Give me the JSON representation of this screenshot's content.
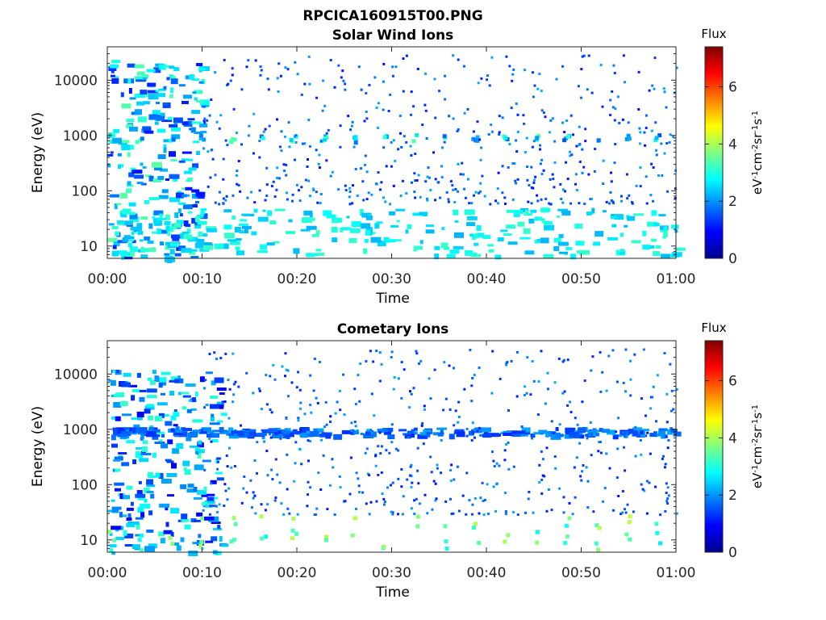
{
  "figure_title": "RPCICA160915T00.PNG",
  "chart_data": [
    {
      "type": "heatmap",
      "title": "Solar Wind Ions",
      "xlabel": "Time",
      "ylabel": "Energy (eV)",
      "x_ticks": [
        "00:00",
        "00:10",
        "00:20",
        "00:30",
        "00:40",
        "00:50",
        "01:00"
      ],
      "xlim": [
        "00:00",
        "01:00"
      ],
      "y_scale": "log",
      "y_ticks": [
        "10",
        "100",
        "1000",
        "10000"
      ],
      "ylim": [
        6,
        40000
      ],
      "colorbar": {
        "title": "Flux",
        "label": "eV-1cm-2sr-1s-1",
        "range": [
          0,
          7.4
        ],
        "ticks": [
          "0",
          "2",
          "4",
          "6"
        ],
        "colormap": "jet"
      },
      "features": [
        {
          "time": "00:00-00:10",
          "energy": [
            6,
            25000
          ],
          "flux": [
            1,
            3.5
          ]
        },
        {
          "time": "00:00-01:00",
          "energy": [
            800,
            1100
          ],
          "flux": [
            1.5,
            3.5
          ],
          "note": "periodic bursts every ~3 min"
        },
        {
          "time": "00:00-01:00",
          "energy": [
            7,
            50
          ],
          "flux": [
            2.2,
            3.2
          ]
        },
        {
          "time": "00:10-01:00",
          "energy": [
            60,
            30000
          ],
          "flux": [
            1,
            2.2
          ],
          "note": "sparse scattered pixels"
        }
      ]
    },
    {
      "type": "heatmap",
      "title": "Cometary Ions",
      "xlabel": "Time",
      "ylabel": "Energy (eV)",
      "x_ticks": [
        "00:00",
        "00:10",
        "00:20",
        "00:30",
        "00:40",
        "00:50",
        "01:00"
      ],
      "xlim": [
        "00:00",
        "01:00"
      ],
      "y_scale": "log",
      "y_ticks": [
        "10",
        "100",
        "1000",
        "10000"
      ],
      "ylim": [
        6,
        40000
      ],
      "colorbar": {
        "title": "Flux",
        "label": "eV-1cm-2sr-1s-1",
        "range": [
          0,
          7.4
        ],
        "ticks": [
          "0",
          "2",
          "4",
          "6"
        ],
        "colormap": "jet"
      },
      "features": [
        {
          "time": "00:00-00:12",
          "energy": [
            6,
            12000
          ],
          "flux": [
            0.8,
            3.2
          ]
        },
        {
          "time": "00:00-01:00",
          "energy": [
            7,
            30
          ],
          "flux": [
            2.5,
            4.2
          ],
          "note": "periodic bursts every ~3 min"
        },
        {
          "time": "00:00-01:00",
          "energy": [
            800,
            1100
          ],
          "flux": [
            1.2,
            2.2
          ]
        },
        {
          "time": "00:10-01:00",
          "energy": [
            30,
            30000
          ],
          "flux": [
            1,
            2.2
          ],
          "note": "sparse scattered pixels"
        }
      ]
    }
  ]
}
